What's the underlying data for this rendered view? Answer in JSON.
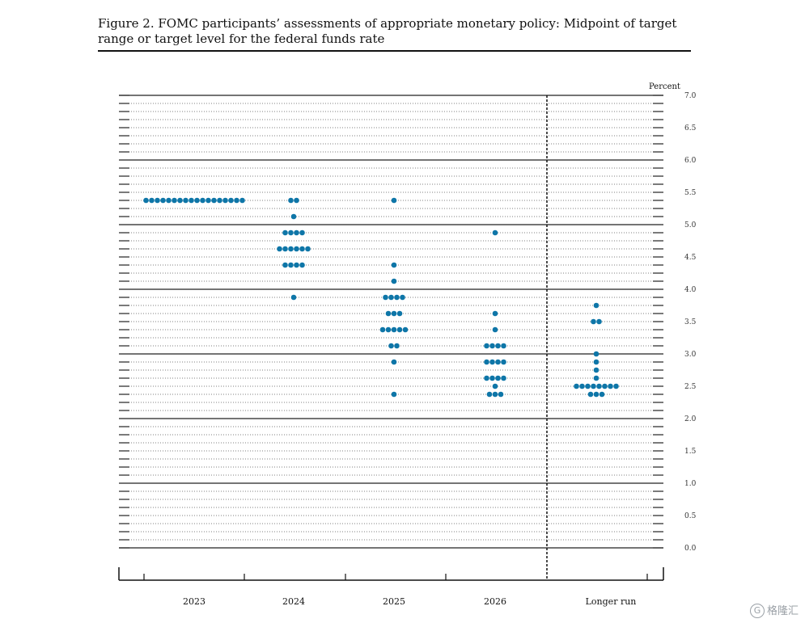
{
  "figure": {
    "title": "Figure 2.  FOMC participants’ assessments of appropriate monetary policy: Midpoint of target range or target level for the federal funds rate"
  },
  "watermark": {
    "text": "格隆汇"
  },
  "chart_data": {
    "type": "scatter",
    "subtype": "dot-plot",
    "title": "",
    "xlabel": "",
    "ylabel": "Percent",
    "ylim": [
      0,
      7.0
    ],
    "y_tick_step": 0.5,
    "y_minor_step": 0.125,
    "y_tick_labels": [
      "0.0",
      "0.5",
      "1.0",
      "1.5",
      "2.0",
      "2.5",
      "3.0",
      "3.5",
      "4.0",
      "4.5",
      "5.0",
      "5.5",
      "6.0",
      "6.5",
      "7.0"
    ],
    "grid": true,
    "dot_color": "#0e76a8",
    "categories": [
      "2023",
      "2024",
      "2025",
      "2026",
      "Longer run"
    ],
    "separator_before": "Longer run",
    "series": [
      {
        "category": "2023",
        "dots": [
          {
            "y": 5.375,
            "count": 18
          }
        ]
      },
      {
        "category": "2024",
        "dots": [
          {
            "y": 5.375,
            "count": 2
          },
          {
            "y": 5.125,
            "count": 1
          },
          {
            "y": 4.875,
            "count": 4
          },
          {
            "y": 4.625,
            "count": 6
          },
          {
            "y": 4.375,
            "count": 4
          },
          {
            "y": 3.875,
            "count": 1
          }
        ]
      },
      {
        "category": "2025",
        "dots": [
          {
            "y": 5.375,
            "count": 1
          },
          {
            "y": 4.375,
            "count": 1
          },
          {
            "y": 4.125,
            "count": 1
          },
          {
            "y": 3.875,
            "count": 4
          },
          {
            "y": 3.625,
            "count": 3
          },
          {
            "y": 3.375,
            "count": 5
          },
          {
            "y": 3.125,
            "count": 2
          },
          {
            "y": 2.875,
            "count": 1
          },
          {
            "y": 2.375,
            "count": 1
          }
        ]
      },
      {
        "category": "2026",
        "dots": [
          {
            "y": 4.875,
            "count": 1
          },
          {
            "y": 3.625,
            "count": 1
          },
          {
            "y": 3.375,
            "count": 1
          },
          {
            "y": 3.125,
            "count": 4
          },
          {
            "y": 2.875,
            "count": 4
          },
          {
            "y": 2.625,
            "count": 4
          },
          {
            "y": 2.5,
            "count": 1
          },
          {
            "y": 2.375,
            "count": 3
          }
        ]
      },
      {
        "category": "Longer run",
        "dots": [
          {
            "y": 3.75,
            "count": 1
          },
          {
            "y": 3.5,
            "count": 2
          },
          {
            "y": 3.0,
            "count": 1
          },
          {
            "y": 2.875,
            "count": 1
          },
          {
            "y": 2.75,
            "count": 1
          },
          {
            "y": 2.625,
            "count": 1
          },
          {
            "y": 2.5,
            "count": 8
          },
          {
            "y": 2.375,
            "count": 3
          }
        ]
      }
    ]
  }
}
